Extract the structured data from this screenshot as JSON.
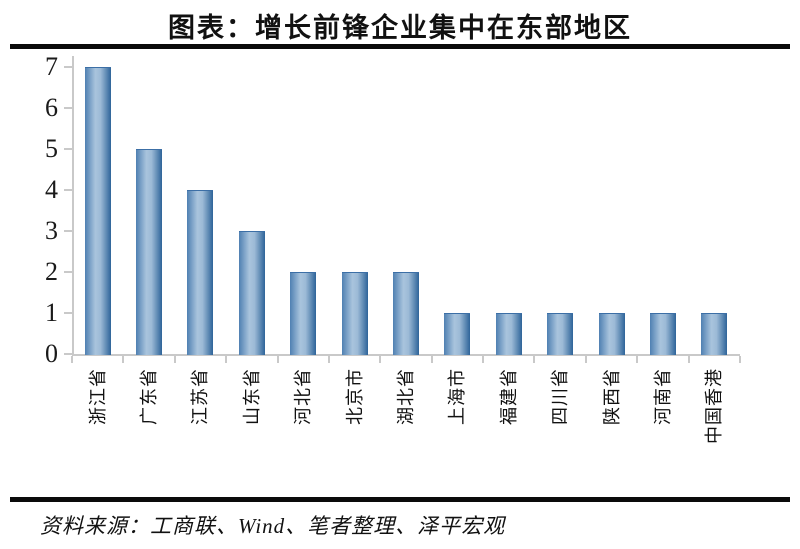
{
  "page": {
    "title": "图表：增长前锋企业集中在东部地区",
    "source_note": "资料来源：工商联、Wind、笔者整理、泽平宏观"
  },
  "colors": {
    "bar_edge_left": "#4f80b2",
    "bar_center_light": "#a9c4dd",
    "bar_center_light2": "#9cbad6",
    "bar_edge_right": "#2e6499",
    "bar_top_edge": "#3c6fa6",
    "axis_line": "#c9c9c9",
    "rule": "#0a0a0a"
  },
  "chart_data": {
    "type": "bar",
    "title": "图表：增长前锋企业集中在东部地区",
    "categories": [
      "浙江省",
      "广东省",
      "江苏省",
      "山东省",
      "河北省",
      "北京市",
      "湖北省",
      "上海市",
      "福建省",
      "四川省",
      "陕西省",
      "河南省",
      "中国香港"
    ],
    "values": [
      7,
      5,
      4,
      3,
      2,
      2,
      2,
      1,
      1,
      1,
      1,
      1,
      1
    ],
    "xlabel": "",
    "ylabel": "",
    "ylim": [
      0,
      7
    ],
    "yticks": [
      0,
      1,
      2,
      3,
      4,
      5,
      6,
      7
    ],
    "grid": false,
    "legend": "none",
    "x_label_rotation_degrees": 90,
    "source_note": "资料来源：工商联、Wind、笔者整理、泽平宏观"
  }
}
